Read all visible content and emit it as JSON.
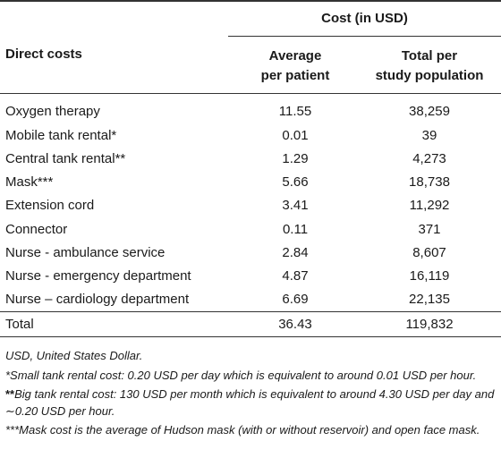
{
  "table": {
    "cost_header": "Cost (in USD)",
    "row_header": "Direct costs",
    "col_avg_line1": "Average",
    "col_avg_line2": "per patient",
    "col_total_line1": "Total per",
    "col_total_line2": "study population",
    "rows": [
      {
        "label": "Oxygen therapy",
        "avg": "11.55",
        "total": "38,259"
      },
      {
        "label": "Mobile tank rental*",
        "avg": "0.01",
        "total": "39"
      },
      {
        "label": "Central tank rental**",
        "avg": "1.29",
        "total": "4,273"
      },
      {
        "label": "Mask***",
        "avg": "5.66",
        "total": "18,738"
      },
      {
        "label": "Extension cord",
        "avg": "3.41",
        "total": "11,292"
      },
      {
        "label": "Connector",
        "avg": "0.11",
        "total": "371"
      },
      {
        "label": "Nurse - ambulance service",
        "avg": "2.84",
        "total": "8,607"
      },
      {
        "label": "Nurse - emergency department",
        "avg": "4.87",
        "total": "16,119"
      },
      {
        "label": "Nurse – cardiology department",
        "avg": "6.69",
        "total": "22,135"
      }
    ],
    "total_row": {
      "label": "Total",
      "avg": "36.43",
      "total": "119,832"
    }
  },
  "footnotes": {
    "abbrev": "USD, United States Dollar.",
    "note1": "*Small tank rental cost: 0.20 USD per day which is equivalent to around 0.01 USD per hour.",
    "note2_mark": "**",
    "note2_text": "Big tank rental cost: 130 USD per month which is equivalent to around 4.30 USD per day and ∼0.20 USD per hour.",
    "note3": "***Mask cost is the average of Hudson mask (with or without reservoir) and open face mask."
  }
}
